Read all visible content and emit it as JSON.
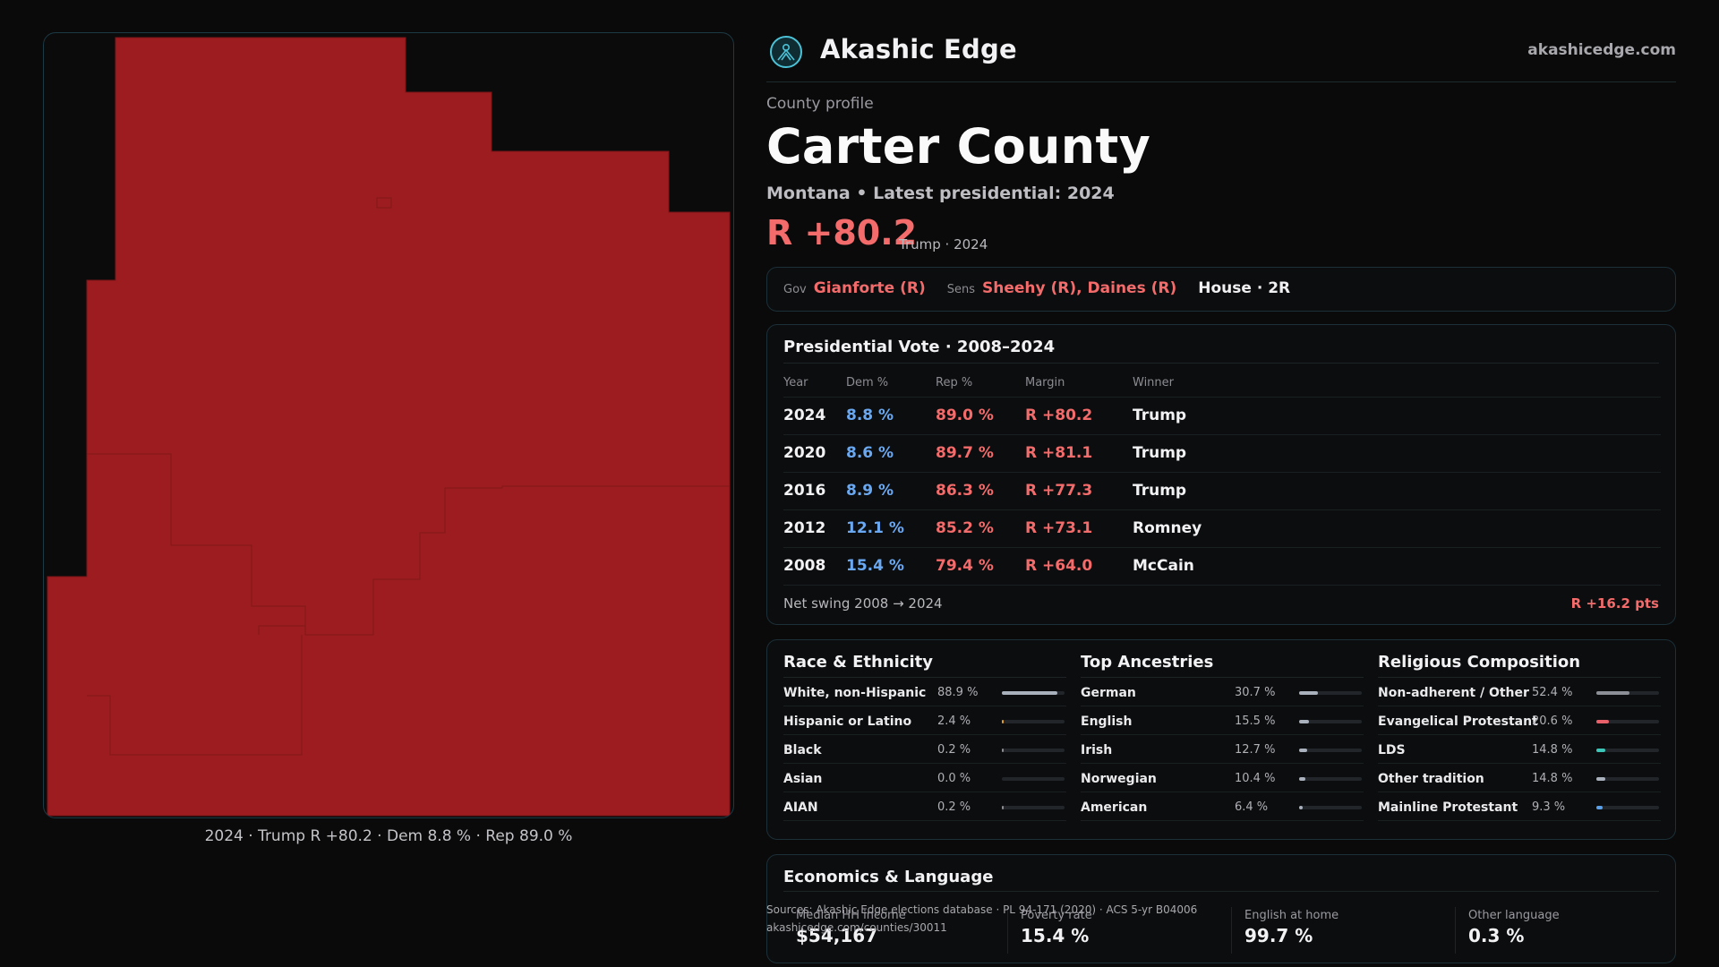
{
  "brand": {
    "name": "Akashic Edge",
    "url": "akashicedge.com"
  },
  "profile": {
    "eyebrow": "County profile",
    "county": "Carter County",
    "subtitle": "Montana • Latest presidential: 2024",
    "margin": "R +80.2",
    "margin_note": "Trump · 2024"
  },
  "officials": {
    "gov_key": "Gov",
    "gov": "Gianforte (R)",
    "sens_key": "Sens",
    "sens": "Sheehy (R), Daines (R)",
    "house": "House · 2R"
  },
  "presidential": {
    "title": "Presidential Vote · 2008–2024",
    "headers": [
      "Year",
      "Dem %",
      "Rep %",
      "Margin",
      "Winner"
    ],
    "rows": [
      {
        "year": "2024",
        "dem": "8.8 %",
        "rep": "89.0 %",
        "margin": "R +80.2",
        "winner": "Trump"
      },
      {
        "year": "2020",
        "dem": "8.6 %",
        "rep": "89.7 %",
        "margin": "R +81.1",
        "winner": "Trump"
      },
      {
        "year": "2016",
        "dem": "8.9 %",
        "rep": "86.3 %",
        "margin": "R +77.3",
        "winner": "Trump"
      },
      {
        "year": "2012",
        "dem": "12.1 %",
        "rep": "85.2 %",
        "margin": "R +73.1",
        "winner": "Romney"
      },
      {
        "year": "2008",
        "dem": "15.4 %",
        "rep": "79.4 %",
        "margin": "R +64.0",
        "winner": "McCain"
      }
    ],
    "swing_label": "Net swing 2008 → 2024",
    "swing_value": "R +16.2 pts"
  },
  "race": {
    "title": "Race & Ethnicity",
    "items": [
      {
        "label": "White, non-Hispanic",
        "pct": "88.9 %",
        "value": 88.9,
        "color": "#a9b1bd"
      },
      {
        "label": "Hispanic or Latino",
        "pct": "2.4 %",
        "value": 2.4,
        "color": "#e0a030"
      },
      {
        "label": "Black",
        "pct": "0.2 %",
        "value": 0.2,
        "color": "#8c8c92"
      },
      {
        "label": "Asian",
        "pct": "0.0 %",
        "value": 0.0,
        "color": "#8c8c92"
      },
      {
        "label": "AIAN",
        "pct": "0.2 %",
        "value": 0.2,
        "color": "#8c8c92"
      }
    ]
  },
  "ancestry": {
    "title": "Top Ancestries",
    "items": [
      {
        "label": "German",
        "pct": "30.7 %",
        "value": 30.7,
        "color": "#a9b1bd"
      },
      {
        "label": "English",
        "pct": "15.5 %",
        "value": 15.5,
        "color": "#a9b1bd"
      },
      {
        "label": "Irish",
        "pct": "12.7 %",
        "value": 12.7,
        "color": "#a9b1bd"
      },
      {
        "label": "Norwegian",
        "pct": "10.4 %",
        "value": 10.4,
        "color": "#a9b1bd"
      },
      {
        "label": "American",
        "pct": "6.4 %",
        "value": 6.4,
        "color": "#a9b1bd"
      }
    ]
  },
  "religion": {
    "title": "Religious Composition",
    "items": [
      {
        "label": "Non-adherent / Other",
        "pct": "52.4 %",
        "value": 52.4,
        "color": "#8c9096"
      },
      {
        "label": "Evangelical Protestant",
        "pct": "20.6 %",
        "value": 20.6,
        "color": "#e8606a"
      },
      {
        "label": "LDS",
        "pct": "14.8 %",
        "value": 14.8,
        "color": "#3cc6b8"
      },
      {
        "label": "Other tradition",
        "pct": "14.8 %",
        "value": 14.8,
        "color": "#a9b1bd"
      },
      {
        "label": "Mainline Protestant",
        "pct": "9.3 %",
        "value": 9.3,
        "color": "#5aa0e8"
      }
    ]
  },
  "economics": {
    "title": "Economics & Language",
    "cells": [
      {
        "key": "Median HH income",
        "value": "$54,167"
      },
      {
        "key": "Poverty rate",
        "value": "15.4 %"
      },
      {
        "key": "English at home",
        "value": "99.7 %"
      },
      {
        "key": "Other language",
        "value": "0.3 %"
      }
    ]
  },
  "sources": {
    "line1": "Sources: Akashic Edge elections database · PL 94-171 (2020) · ACS 5-yr B04006",
    "line2": "akashicedge.com/counties/30011"
  },
  "map": {
    "caption": "2024 · Trump R +80.2 · Dem 8.8 % · Rep 89.0 %",
    "fill_color": "#9c1c1f"
  }
}
